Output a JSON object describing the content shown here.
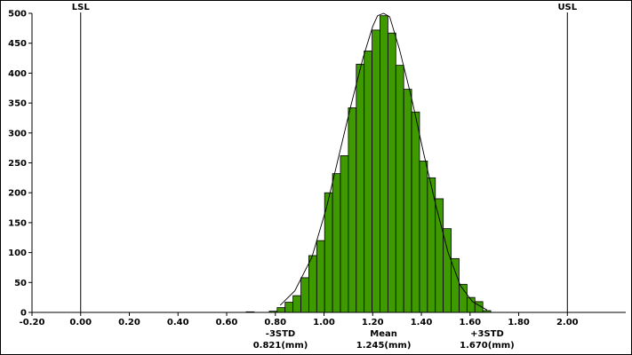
{
  "chart_data": {
    "type": "bar",
    "title": "",
    "xlabel": "",
    "ylabel": "",
    "xlim": [
      -0.2,
      2.24
    ],
    "ylim": [
      0,
      500
    ],
    "x_ticks": [
      "-0.20",
      "0.00",
      "0.20",
      "0.40",
      "0.60",
      "0.80",
      "1.00",
      "1.20",
      "1.40",
      "1.60",
      "1.80",
      "2.00"
    ],
    "x_tick_values": [
      -0.2,
      0.0,
      0.2,
      0.4,
      0.6,
      0.8,
      1.0,
      1.2,
      1.4,
      1.6,
      1.8,
      2.0
    ],
    "y_ticks": [
      "0",
      "50",
      "100",
      "150",
      "200",
      "250",
      "300",
      "350",
      "400",
      "450",
      "500"
    ],
    "y_tick_values": [
      0,
      50,
      100,
      150,
      200,
      250,
      300,
      350,
      400,
      450,
      500
    ],
    "bin_width": 0.0325,
    "bin_starts": [
      0.68,
      0.775,
      0.8075,
      0.84,
      0.8725,
      0.905,
      0.9375,
      0.97,
      1.0025,
      1.035,
      1.0675,
      1.1,
      1.1325,
      1.165,
      1.1975,
      1.23,
      1.2625,
      1.295,
      1.3275,
      1.36,
      1.3925,
      1.425,
      1.4575,
      1.49,
      1.5225,
      1.555,
      1.5875,
      1.62,
      1.6525
    ],
    "values": [
      1,
      2,
      8,
      17,
      28,
      58,
      95,
      120,
      200,
      232,
      262,
      342,
      415,
      437,
      472,
      496,
      467,
      413,
      373,
      335,
      253,
      225,
      190,
      140,
      90,
      47,
      25,
      18,
      3
    ],
    "curve_x": [
      0.82,
      0.88,
      0.95,
      1.01,
      1.06,
      1.11,
      1.16,
      1.2,
      1.22,
      1.245,
      1.27,
      1.31,
      1.36,
      1.41,
      1.46,
      1.51,
      1.56,
      1.61,
      1.67
    ],
    "curve_y": [
      12,
      36,
      92,
      175,
      260,
      345,
      425,
      478,
      496,
      500,
      494,
      440,
      358,
      265,
      178,
      100,
      45,
      18,
      4
    ],
    "spec_limits": [
      {
        "label": "LSL",
        "value": 0.0
      },
      {
        "label": "USL",
        "value": 2.0
      }
    ],
    "stat_annotations": [
      {
        "name": "minus-3std",
        "label": "-3STD",
        "value_text": "0.821(mm)",
        "value": 0.821
      },
      {
        "name": "mean",
        "label": "Mean",
        "value_text": "1.245(mm)",
        "value": 1.245
      },
      {
        "name": "plus-3std",
        "label": "+3STD",
        "value_text": "1.670(mm)",
        "value": 1.67
      }
    ],
    "colors": {
      "bar_fill": "#3f9a00",
      "bar_stroke": "#000000",
      "curve": "#000000",
      "axis": "#000000"
    },
    "grid": false,
    "legend": "none"
  }
}
